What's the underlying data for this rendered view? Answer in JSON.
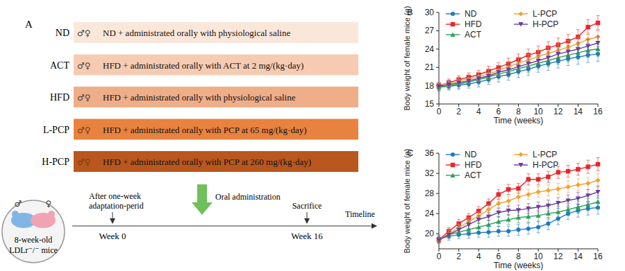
{
  "panel_a": {
    "label": "A",
    "groups": [
      {
        "label": "ND",
        "sex": "♂♀",
        "description": "ND + administrated orally with physiological saline",
        "color": "#fbe7da"
      },
      {
        "label": "ACT",
        "sex": "♂♀",
        "description": "HFD + administrated orally with ACT at 2 mg/(kg·day)",
        "color": "#f6cbb1"
      },
      {
        "label": "HFD",
        "sex": "♂♀",
        "description": "HFD + administrated orally with physiological saline",
        "color": "#efae88"
      },
      {
        "label": "L-PCP",
        "sex": "♂♀",
        "description": "HFD + administrated orally with PCP at 65 mg/(kg·day)",
        "color": "#e8823f"
      },
      {
        "label": "H-PCP",
        "sex": "♂♀",
        "description": "HFD + administrated orally with PCP at 260 mg/(kg·day)",
        "color": "#b9571e"
      }
    ],
    "mice": {
      "symbols": [
        "♂",
        "♀"
      ],
      "lines": [
        "8-week-old",
        "LDLr⁻/⁻ mice"
      ]
    },
    "timeline": {
      "adaptation": [
        "After one-week",
        "adaptation-perid"
      ],
      "start": "Week 0",
      "treatment": "Oral administration",
      "end_event": "Sacrifice",
      "end": "Week 16",
      "axis_label": "Timeline"
    }
  },
  "chart_data": [
    {
      "type": "line",
      "title": "B",
      "x_label": "Time (weeks)",
      "y_label": "Body weight of female mice (g)",
      "x": [
        0,
        1,
        2,
        3,
        4,
        5,
        6,
        7,
        8,
        9,
        10,
        11,
        12,
        13,
        14,
        15,
        16
      ],
      "xlim": [
        0,
        16
      ],
      "xticks": [
        0,
        2,
        4,
        6,
        8,
        10,
        12,
        14,
        16
      ],
      "ylim": [
        15,
        30
      ],
      "yticks": [
        15,
        18,
        21,
        24,
        27,
        30
      ],
      "legend": "top-left",
      "series": [
        {
          "name": "ND",
          "color": "#1f78c8",
          "marker": "circle",
          "values": [
            17.8,
            17.9,
            18.1,
            18.3,
            18.6,
            19.0,
            19.5,
            19.8,
            20.3,
            20.7,
            21.2,
            21.6,
            22.0,
            22.4,
            22.7,
            23.0,
            23.2
          ],
          "errors": [
            0.6,
            0.6,
            0.7,
            0.7,
            0.8,
            0.8,
            0.9,
            0.9,
            1.0,
            1.0,
            1.0,
            1.1,
            1.1,
            1.1,
            1.2,
            1.2,
            1.2
          ]
        },
        {
          "name": "HFD",
          "color": "#e8262b",
          "marker": "square",
          "values": [
            18.0,
            18.5,
            19.0,
            19.4,
            19.8,
            20.4,
            21.0,
            21.6,
            22.3,
            23.0,
            23.5,
            24.2,
            24.7,
            25.3,
            26.0,
            27.6,
            28.3
          ],
          "errors": [
            0.5,
            0.6,
            0.6,
            0.7,
            0.7,
            0.8,
            0.8,
            0.9,
            0.9,
            1.0,
            1.0,
            1.0,
            1.1,
            1.1,
            1.2,
            1.2,
            1.2
          ]
        },
        {
          "name": "ACT",
          "color": "#2ca05a",
          "marker": "triangle",
          "values": [
            17.7,
            18.0,
            18.3,
            18.6,
            19.0,
            19.4,
            19.9,
            20.3,
            20.8,
            21.2,
            21.7,
            22.1,
            22.6,
            23.0,
            23.4,
            23.8,
            24.0
          ],
          "errors": [
            0.6,
            0.6,
            0.7,
            0.7,
            0.8,
            0.8,
            0.8,
            0.9,
            0.9,
            1.0,
            1.0,
            1.0,
            1.1,
            1.1,
            1.1,
            1.2,
            1.2
          ]
        },
        {
          "name": "L-PCP",
          "color": "#f5a030",
          "marker": "diamond",
          "values": [
            18.1,
            18.4,
            18.8,
            19.1,
            19.5,
            19.9,
            20.5,
            21.1,
            21.7,
            22.2,
            22.8,
            23.3,
            23.8,
            24.3,
            24.9,
            25.6,
            26.0
          ],
          "errors": [
            0.5,
            0.6,
            0.6,
            0.7,
            0.7,
            0.8,
            0.8,
            0.8,
            0.9,
            0.9,
            1.0,
            1.0,
            1.0,
            1.1,
            1.1,
            1.1,
            1.2
          ]
        },
        {
          "name": "H-PCP",
          "color": "#6a3d9a",
          "marker": "triangle-down",
          "values": [
            17.9,
            18.2,
            18.5,
            18.8,
            19.2,
            19.6,
            20.2,
            20.6,
            21.1,
            21.6,
            22.1,
            22.6,
            23.2,
            23.6,
            24.0,
            24.5,
            25.0
          ],
          "errors": [
            0.5,
            0.6,
            0.6,
            0.7,
            0.7,
            0.7,
            0.8,
            0.8,
            0.9,
            0.9,
            0.9,
            1.0,
            1.0,
            1.0,
            1.1,
            1.1,
            1.1
          ]
        }
      ]
    },
    {
      "type": "line",
      "title": "C",
      "x_label": "Time (weeks)",
      "y_label": "Body weight of female mice (g)",
      "x": [
        0,
        1,
        2,
        3,
        4,
        5,
        6,
        7,
        8,
        9,
        10,
        11,
        12,
        13,
        14,
        15,
        16
      ],
      "xlim": [
        0,
        16
      ],
      "xticks": [
        0,
        2,
        4,
        6,
        8,
        10,
        12,
        14,
        16
      ],
      "ylim": [
        17,
        36
      ],
      "yticks": [
        20,
        24,
        28,
        32,
        36
      ],
      "legend": "top-left",
      "series": [
        {
          "name": "ND",
          "color": "#1f78c8",
          "marker": "circle",
          "values": [
            19.0,
            19.5,
            19.8,
            20.0,
            20.2,
            20.3,
            20.5,
            20.5,
            20.8,
            21.0,
            21.3,
            22.0,
            23.0,
            24.0,
            24.6,
            25.0,
            25.2
          ],
          "errors": [
            0.7,
            0.8,
            0.8,
            0.9,
            0.9,
            1.0,
            1.0,
            1.0,
            1.1,
            1.1,
            1.1,
            1.2,
            1.2,
            1.2,
            1.3,
            1.3,
            1.3
          ]
        },
        {
          "name": "HFD",
          "color": "#e8262b",
          "marker": "square",
          "values": [
            18.8,
            20.5,
            22.0,
            23.2,
            24.5,
            26.0,
            27.8,
            28.8,
            29.0,
            30.8,
            30.8,
            31.3,
            32.2,
            32.4,
            32.8,
            33.3,
            33.8
          ],
          "errors": [
            0.6,
            0.7,
            0.8,
            0.8,
            0.9,
            0.9,
            1.0,
            1.0,
            1.0,
            1.1,
            1.1,
            1.1,
            1.2,
            1.2,
            1.2,
            1.3,
            1.3
          ]
        },
        {
          "name": "ACT",
          "color": "#2ca05a",
          "marker": "triangle",
          "values": [
            19.0,
            19.8,
            20.3,
            20.8,
            21.3,
            21.8,
            22.4,
            22.8,
            23.2,
            23.4,
            23.6,
            24.0,
            24.3,
            24.8,
            25.3,
            25.8,
            26.3
          ],
          "errors": [
            0.7,
            0.7,
            0.8,
            0.8,
            0.9,
            0.9,
            1.0,
            1.0,
            1.0,
            1.1,
            1.1,
            1.1,
            1.2,
            1.2,
            1.2,
            1.2,
            1.3
          ]
        },
        {
          "name": "L-PCP",
          "color": "#f5a030",
          "marker": "diamond",
          "values": [
            18.7,
            20.0,
            21.2,
            22.4,
            23.5,
            24.8,
            26.0,
            26.5,
            27.3,
            27.8,
            28.3,
            28.6,
            28.9,
            29.3,
            29.7,
            30.0,
            30.6
          ],
          "errors": [
            0.6,
            0.7,
            0.7,
            0.8,
            0.8,
            0.9,
            0.9,
            1.0,
            1.0,
            1.0,
            1.1,
            1.1,
            1.1,
            1.2,
            1.2,
            1.2,
            1.3
          ]
        },
        {
          "name": "H-PCP",
          "color": "#6a3d9a",
          "marker": "triangle-down",
          "values": [
            18.7,
            19.8,
            20.8,
            21.8,
            22.8,
            23.4,
            24.2,
            24.6,
            24.7,
            25.0,
            25.3,
            25.6,
            26.1,
            26.6,
            27.0,
            27.6,
            28.3
          ],
          "errors": [
            0.6,
            0.7,
            0.7,
            0.8,
            0.8,
            0.8,
            0.9,
            0.9,
            1.0,
            1.0,
            1.0,
            1.1,
            1.1,
            1.1,
            1.2,
            1.2,
            1.2
          ]
        }
      ]
    }
  ]
}
